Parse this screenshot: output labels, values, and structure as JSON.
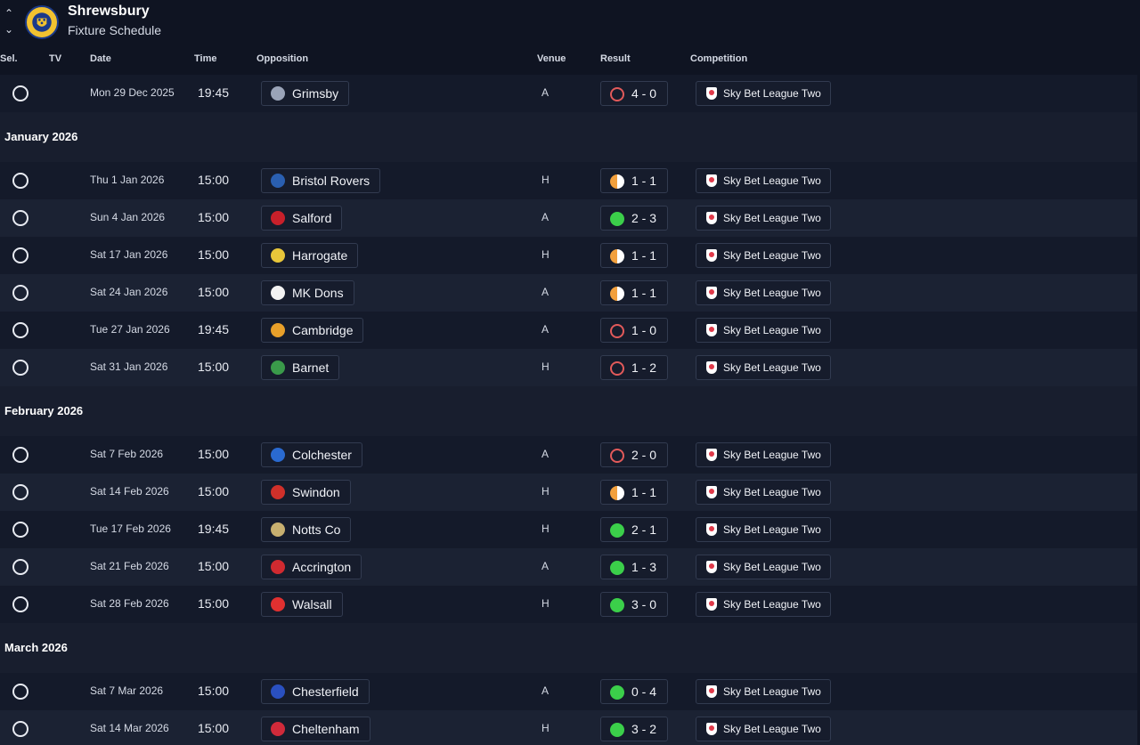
{
  "header": {
    "club": "Shrewsbury",
    "page": "Fixture Schedule",
    "up_icon": "chevron-up-icon",
    "down_icon": "chevron-down-icon",
    "crest_icon": "club-crest-icon"
  },
  "columns": {
    "sel": "Sel.",
    "tv": "TV",
    "date": "Date",
    "time": "Time",
    "opposition": "Opposition",
    "venue": "Venue",
    "result": "Result",
    "competition": "Competition"
  },
  "colors": {
    "win": "#3bcf4a",
    "draw": "#f2a03d",
    "loss": "#e25a5a",
    "background": "#0f1422"
  },
  "fixtures_top": [
    {
      "date": "Mon 29 Dec 2025",
      "time": "19:45",
      "opposition": "Grimsby",
      "venue": "A",
      "outcome": "loss",
      "score": "4 - 0",
      "competition": "Sky Bet League Two",
      "badge": "#9aa4b8"
    }
  ],
  "months": [
    {
      "label": "January 2026"
    },
    {
      "label": "February 2026"
    },
    {
      "label": "March 2026"
    }
  ],
  "fixtures_jan": [
    {
      "date": "Thu 1 Jan 2026",
      "time": "15:00",
      "opposition": "Bristol Rovers",
      "venue": "H",
      "outcome": "draw",
      "score": "1 - 1",
      "competition": "Sky Bet League Two",
      "badge": "#2a5fb0"
    },
    {
      "date": "Sun 4 Jan 2026",
      "time": "15:00",
      "opposition": "Salford",
      "venue": "A",
      "outcome": "win",
      "score": "2 - 3",
      "competition": "Sky Bet League Two",
      "badge": "#c8202a"
    },
    {
      "date": "Sat 17 Jan 2026",
      "time": "15:00",
      "opposition": "Harrogate",
      "venue": "H",
      "outcome": "draw",
      "score": "1 - 1",
      "competition": "Sky Bet League Two",
      "badge": "#e8c63a"
    },
    {
      "date": "Sat 24 Jan 2026",
      "time": "15:00",
      "opposition": "MK Dons",
      "venue": "A",
      "outcome": "draw",
      "score": "1 - 1",
      "competition": "Sky Bet League Two",
      "badge": "#f2f2f2"
    },
    {
      "date": "Tue 27 Jan 2026",
      "time": "19:45",
      "opposition": "Cambridge",
      "venue": "A",
      "outcome": "loss",
      "score": "1 - 0",
      "competition": "Sky Bet League Two",
      "badge": "#e8a02a"
    },
    {
      "date": "Sat 31 Jan 2026",
      "time": "15:00",
      "opposition": "Barnet",
      "venue": "H",
      "outcome": "loss",
      "score": "1 - 2",
      "competition": "Sky Bet League Two",
      "badge": "#3a9a4a"
    }
  ],
  "fixtures_feb": [
    {
      "date": "Sat 7 Feb 2026",
      "time": "15:00",
      "opposition": "Colchester",
      "venue": "A",
      "outcome": "loss",
      "score": "2 - 0",
      "competition": "Sky Bet League Two",
      "badge": "#2a6ad0"
    },
    {
      "date": "Sat 14 Feb 2026",
      "time": "15:00",
      "opposition": "Swindon",
      "venue": "H",
      "outcome": "draw",
      "score": "1 - 1",
      "competition": "Sky Bet League Two",
      "badge": "#d0302a"
    },
    {
      "date": "Tue 17 Feb 2026",
      "time": "19:45",
      "opposition": "Notts Co",
      "venue": "H",
      "outcome": "win",
      "score": "2 - 1",
      "competition": "Sky Bet League Two",
      "badge": "#c8b070"
    },
    {
      "date": "Sat 21 Feb 2026",
      "time": "15:00",
      "opposition": "Accrington",
      "venue": "A",
      "outcome": "win",
      "score": "1 - 3",
      "competition": "Sky Bet League Two",
      "badge": "#d02a30"
    },
    {
      "date": "Sat 28 Feb 2026",
      "time": "15:00",
      "opposition": "Walsall",
      "venue": "H",
      "outcome": "win",
      "score": "3 - 0",
      "competition": "Sky Bet League Two",
      "badge": "#e03030"
    }
  ],
  "fixtures_mar": [
    {
      "date": "Sat 7 Mar 2026",
      "time": "15:00",
      "opposition": "Chesterfield",
      "venue": "A",
      "outcome": "win",
      "score": "0 - 4",
      "competition": "Sky Bet League Two",
      "badge": "#2a50c0"
    },
    {
      "date": "Sat 14 Mar 2026",
      "time": "15:00",
      "opposition": "Cheltenham",
      "venue": "H",
      "outcome": "win",
      "score": "3 - 2",
      "competition": "Sky Bet League Two",
      "badge": "#d02a3a"
    }
  ]
}
